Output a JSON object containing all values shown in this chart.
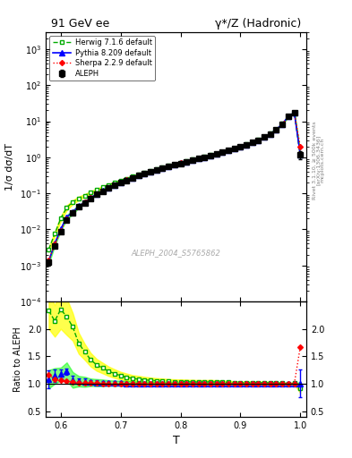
{
  "title_left": "91 GeV ee",
  "title_right": "γ*/Z (Hadronic)",
  "ylabel_main": "1/σ dσ/dT",
  "ylabel_ratio": "Ratio to ALEPH",
  "xlabel": "T",
  "watermark": "ALEPH_2004_S5765862",
  "right_label": "Rivet 3.1.10, ≥ 500k events",
  "arxiv_label": "[arXiv:1306.3436]",
  "mcplots_label": "mcplots.cern.ch",
  "ylim_main": [
    0.0001,
    3000
  ],
  "ylim_ratio": [
    0.4,
    2.5
  ],
  "xlim": [
    0.575,
    1.01
  ],
  "legend_entries": [
    "ALEPH",
    "Herwig 7.1.6 default",
    "Pythia 8.209 default",
    "Sherpa 2.2.9 default"
  ],
  "aleph_T": [
    0.58,
    0.59,
    0.6,
    0.61,
    0.62,
    0.63,
    0.64,
    0.65,
    0.66,
    0.67,
    0.68,
    0.69,
    0.7,
    0.71,
    0.72,
    0.73,
    0.74,
    0.75,
    0.76,
    0.77,
    0.78,
    0.79,
    0.8,
    0.81,
    0.82,
    0.83,
    0.84,
    0.85,
    0.86,
    0.87,
    0.88,
    0.89,
    0.9,
    0.91,
    0.92,
    0.93,
    0.94,
    0.95,
    0.96,
    0.97,
    0.98,
    0.99,
    1.0
  ],
  "aleph_y": [
    0.0012,
    0.0035,
    0.0085,
    0.018,
    0.028,
    0.042,
    0.055,
    0.073,
    0.093,
    0.115,
    0.14,
    0.167,
    0.197,
    0.23,
    0.267,
    0.307,
    0.35,
    0.395,
    0.445,
    0.498,
    0.555,
    0.617,
    0.683,
    0.755,
    0.833,
    0.92,
    1.015,
    1.12,
    1.24,
    1.38,
    1.54,
    1.73,
    1.96,
    2.23,
    2.57,
    3.01,
    3.61,
    4.48,
    5.86,
    8.4,
    13.5,
    17.5,
    1.2
  ],
  "aleph_yerr": [
    0.0002,
    0.0004,
    0.0007,
    0.001,
    0.002,
    0.002,
    0.003,
    0.003,
    0.004,
    0.004,
    0.005,
    0.006,
    0.007,
    0.007,
    0.008,
    0.009,
    0.01,
    0.011,
    0.012,
    0.013,
    0.015,
    0.016,
    0.018,
    0.019,
    0.021,
    0.023,
    0.025,
    0.028,
    0.031,
    0.034,
    0.038,
    0.043,
    0.049,
    0.056,
    0.065,
    0.077,
    0.092,
    0.115,
    0.15,
    0.22,
    0.36,
    0.5,
    0.3
  ],
  "herwig_T": [
    0.58,
    0.59,
    0.6,
    0.61,
    0.62,
    0.63,
    0.64,
    0.65,
    0.66,
    0.67,
    0.68,
    0.69,
    0.7,
    0.71,
    0.72,
    0.73,
    0.74,
    0.75,
    0.76,
    0.77,
    0.78,
    0.79,
    0.8,
    0.81,
    0.82,
    0.83,
    0.84,
    0.85,
    0.86,
    0.87,
    0.88,
    0.89,
    0.9,
    0.91,
    0.92,
    0.93,
    0.94,
    0.95,
    0.96,
    0.97,
    0.98,
    0.99,
    1.0
  ],
  "herwig_y": [
    0.0028,
    0.0075,
    0.02,
    0.04,
    0.057,
    0.073,
    0.087,
    0.105,
    0.125,
    0.148,
    0.172,
    0.198,
    0.226,
    0.258,
    0.293,
    0.333,
    0.375,
    0.42,
    0.47,
    0.523,
    0.58,
    0.642,
    0.71,
    0.783,
    0.862,
    0.95,
    1.048,
    1.16,
    1.28,
    1.42,
    1.58,
    1.77,
    2.0,
    2.28,
    2.63,
    3.07,
    3.68,
    4.56,
    5.95,
    8.5,
    13.6,
    17.7,
    1.1
  ],
  "herwig_band_lo": [
    0.0024,
    0.0065,
    0.017,
    0.034,
    0.05,
    0.065,
    0.079,
    0.096,
    0.115,
    0.137,
    0.16,
    0.185,
    0.212,
    0.243,
    0.277,
    0.315,
    0.356,
    0.4,
    0.449,
    0.5,
    0.557,
    0.617,
    0.683,
    0.754,
    0.831,
    0.917,
    1.013,
    1.12,
    1.24,
    1.38,
    1.54,
    1.73,
    1.96,
    2.23,
    2.57,
    3.0,
    3.6,
    4.47,
    5.84,
    8.37,
    13.4,
    17.4,
    1.0
  ],
  "herwig_band_hi": [
    0.0032,
    0.0085,
    0.023,
    0.046,
    0.064,
    0.081,
    0.095,
    0.114,
    0.135,
    0.159,
    0.184,
    0.211,
    0.24,
    0.273,
    0.309,
    0.351,
    0.394,
    0.44,
    0.491,
    0.546,
    0.603,
    0.667,
    0.737,
    0.812,
    0.893,
    0.983,
    1.083,
    1.2,
    1.32,
    1.46,
    1.62,
    1.81,
    2.04,
    2.33,
    2.69,
    3.14,
    3.76,
    4.65,
    6.06,
    8.63,
    13.8,
    17.9,
    1.2
  ],
  "pythia_T": [
    0.58,
    0.59,
    0.6,
    0.61,
    0.62,
    0.63,
    0.64,
    0.65,
    0.66,
    0.67,
    0.68,
    0.69,
    0.7,
    0.71,
    0.72,
    0.73,
    0.74,
    0.75,
    0.76,
    0.77,
    0.78,
    0.79,
    0.8,
    0.81,
    0.82,
    0.83,
    0.84,
    0.85,
    0.86,
    0.87,
    0.88,
    0.89,
    0.9,
    0.91,
    0.92,
    0.93,
    0.94,
    0.95,
    0.96,
    0.97,
    0.98,
    0.99,
    1.0
  ],
  "pythia_y": [
    0.0013,
    0.004,
    0.01,
    0.022,
    0.03,
    0.044,
    0.057,
    0.075,
    0.095,
    0.117,
    0.142,
    0.169,
    0.199,
    0.232,
    0.268,
    0.308,
    0.351,
    0.396,
    0.446,
    0.499,
    0.556,
    0.618,
    0.684,
    0.756,
    0.834,
    0.921,
    1.016,
    1.122,
    1.241,
    1.381,
    1.541,
    1.731,
    1.961,
    2.231,
    2.571,
    3.011,
    3.611,
    4.481,
    5.861,
    8.401,
    13.51,
    17.51,
    1.21
  ],
  "pythia_band_lo": [
    0.0011,
    0.0035,
    0.009,
    0.019,
    0.026,
    0.04,
    0.052,
    0.07,
    0.089,
    0.11,
    0.135,
    0.161,
    0.19,
    0.222,
    0.257,
    0.296,
    0.338,
    0.382,
    0.431,
    0.483,
    0.539,
    0.6,
    0.665,
    0.736,
    0.812,
    0.897,
    0.991,
    1.096,
    1.212,
    1.349,
    1.506,
    1.694,
    1.92,
    2.188,
    2.521,
    2.955,
    3.545,
    4.406,
    5.77,
    8.289,
    13.37,
    17.38,
    1.18
  ],
  "pythia_band_hi": [
    0.0015,
    0.0045,
    0.011,
    0.025,
    0.034,
    0.048,
    0.062,
    0.08,
    0.101,
    0.124,
    0.149,
    0.177,
    0.208,
    0.242,
    0.279,
    0.32,
    0.364,
    0.41,
    0.461,
    0.515,
    0.573,
    0.636,
    0.703,
    0.776,
    0.856,
    0.945,
    1.041,
    1.148,
    1.27,
    1.413,
    1.576,
    1.768,
    2.002,
    2.274,
    2.621,
    3.067,
    3.677,
    4.556,
    5.952,
    8.513,
    13.65,
    17.64,
    1.24
  ],
  "sherpa_T": [
    0.58,
    0.59,
    0.6,
    0.61,
    0.62,
    0.63,
    0.64,
    0.65,
    0.66,
    0.67,
    0.68,
    0.69,
    0.7,
    0.71,
    0.72,
    0.73,
    0.74,
    0.75,
    0.76,
    0.77,
    0.78,
    0.79,
    0.8,
    0.81,
    0.82,
    0.83,
    0.84,
    0.85,
    0.86,
    0.87,
    0.88,
    0.89,
    0.9,
    0.91,
    0.92,
    0.93,
    0.94,
    0.95,
    0.96,
    0.97,
    0.98,
    0.99,
    1.0
  ],
  "sherpa_y": [
    0.0014,
    0.0038,
    0.009,
    0.019,
    0.029,
    0.043,
    0.056,
    0.074,
    0.094,
    0.116,
    0.141,
    0.168,
    0.198,
    0.231,
    0.268,
    0.308,
    0.351,
    0.396,
    0.446,
    0.499,
    0.556,
    0.618,
    0.684,
    0.756,
    0.834,
    0.921,
    1.016,
    1.12,
    1.24,
    1.38,
    1.54,
    1.73,
    1.96,
    2.23,
    2.57,
    3.01,
    3.61,
    4.48,
    5.86,
    8.4,
    13.5,
    17.5,
    2.0
  ],
  "aleph_color": "#000000",
  "herwig_color": "#00aa00",
  "pythia_color": "#0000ff",
  "sherpa_color": "#ff0000",
  "herwig_band_color": "#aaff00",
  "pythia_band_color": "#aaffaa",
  "ratio_ylim": [
    0.4,
    2.5
  ],
  "ratio_yticks": [
    0.5,
    1.0,
    1.5,
    2.0
  ]
}
